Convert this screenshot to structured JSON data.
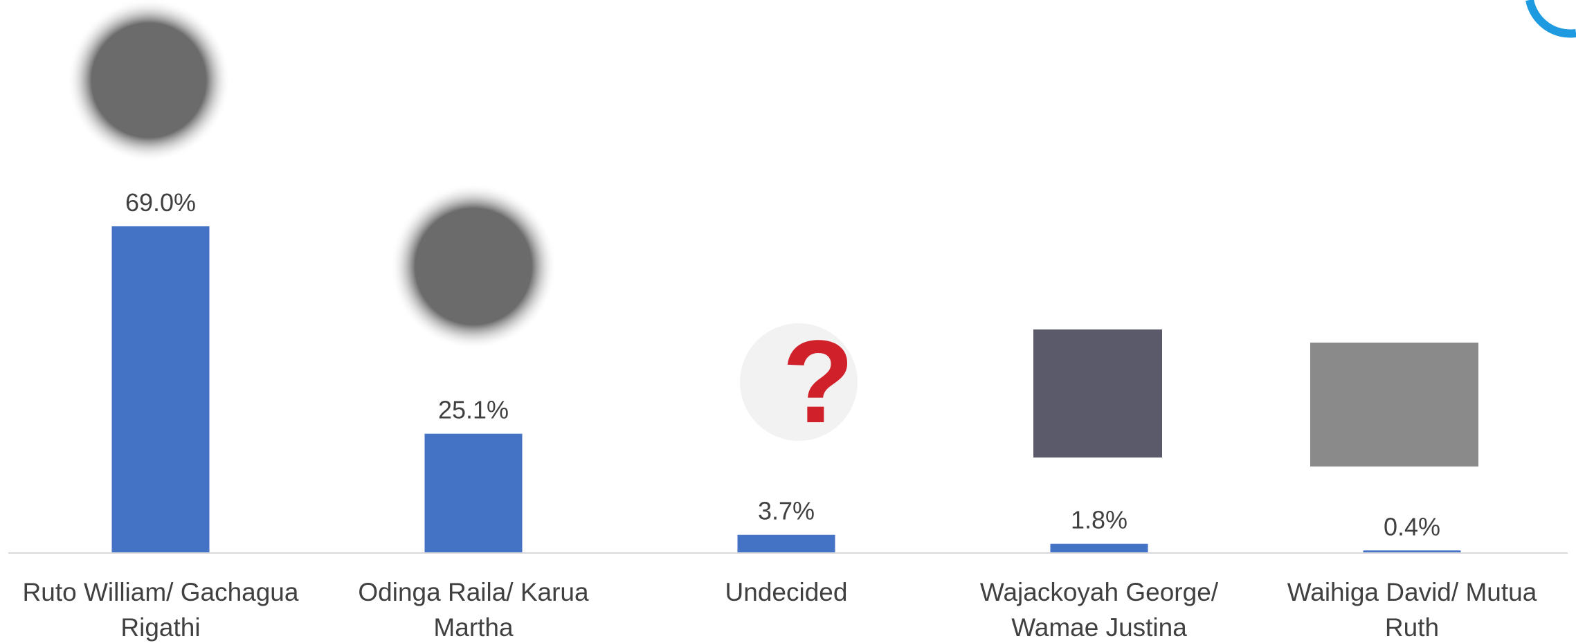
{
  "chart_data": {
    "type": "bar",
    "categories": [
      "Ruto William/ Gachagua Rigathi",
      "Odinga Raila/ Karua Martha",
      "Undecided",
      "Wajackoyah George/ Wamae Justina",
      "Waihiga David/ Mutua Ruth"
    ],
    "values": [
      69.0,
      25.1,
      3.7,
      1.8,
      0.4
    ],
    "value_labels": [
      "69.0%",
      "25.1%",
      "3.7%",
      "1.8%",
      "0.4%"
    ],
    "color": "#4472c4"
  }
}
